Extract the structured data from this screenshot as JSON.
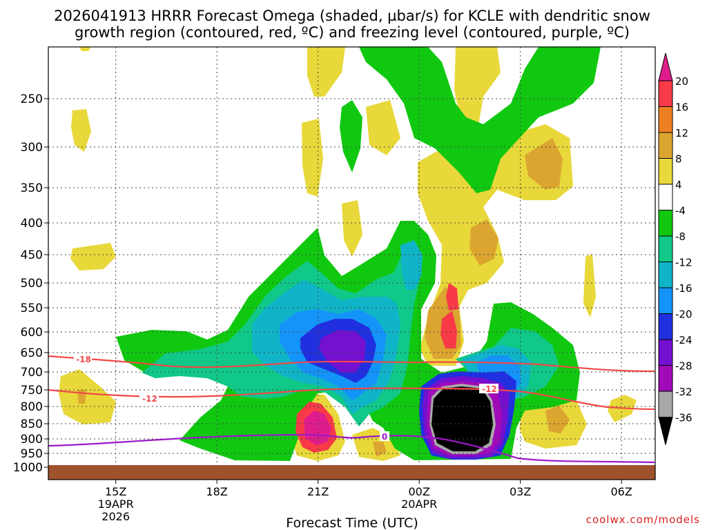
{
  "chart_data": {
    "type": "heatmap",
    "title_line1": "2026041913 HRRR Forecast Omega (shaded, µbar/s) for KCLE with dendritic snow",
    "title_line2": "growth region (contoured, red, ºC) and freezing level (contoured, purple, ºC)",
    "xlabel": "Forecast Time (UTC)",
    "credit": "coolwx.com/models",
    "x_range_hours": [
      13.0,
      31.0
    ],
    "y_levels": [
      "250",
      "300",
      "350",
      "400",
      "450",
      "500",
      "550",
      "600",
      "650",
      "700",
      "750",
      "800",
      "850",
      "900",
      "950",
      "1000"
    ],
    "y_range_hpa": [
      200,
      1010
    ],
    "x_ticks": [
      {
        "h": 15,
        "label": "15Z",
        "date": "19APR",
        "year": "2026"
      },
      {
        "h": 18,
        "label": "18Z",
        "date": "",
        "year": ""
      },
      {
        "h": 21,
        "label": "21Z",
        "date": "",
        "year": ""
      },
      {
        "h": 24,
        "label": "00Z",
        "date": "20APR",
        "year": ""
      },
      {
        "h": 27,
        "label": "03Z",
        "date": "",
        "year": ""
      },
      {
        "h": 30,
        "label": "06Z",
        "date": "",
        "year": ""
      }
    ],
    "colorbar": {
      "labels": [
        "20",
        "16",
        "12",
        "8",
        "4",
        "-4",
        "-8",
        "-12",
        "-16",
        "-20",
        "-24",
        "-28",
        "-32",
        "-36"
      ],
      "colors": [
        "#f83a48",
        "#ee8022",
        "#dca530",
        "#e8d83a",
        "#ffffff",
        "#10c810",
        "#10c888",
        "#10b4c8",
        "#1494f8",
        "#2030e0",
        "#7410d0",
        "#a00ab8",
        "#a8a8a8",
        "#000000"
      ],
      "top_arrow_color": "#e01c8c",
      "bottom_arrow_color": "#000000"
    },
    "contours": {
      "dgz_minus18_label": "-18",
      "dgz_minus12_label": "-12",
      "dgz_minus12_label_right": "-12",
      "freezing_label": "0",
      "dgz_color": "#f04848",
      "freezing_color": "#9a18c8",
      "ground_color": "#a0522d"
    },
    "omega_regions": [
      {
        "value": "4",
        "color": "#e8d83a"
      },
      {
        "value": "8",
        "color": "#dca530"
      },
      {
        "value": "16",
        "color": "#f83a48"
      },
      {
        "value": "-4",
        "color": "#10c810"
      },
      {
        "value": "-8",
        "color": "#10c888"
      },
      {
        "value": "-12",
        "color": "#10b4c8"
      },
      {
        "value": "-16",
        "color": "#1494f8"
      },
      {
        "value": "-20",
        "color": "#2030e0"
      },
      {
        "value": "-24",
        "color": "#7410d0"
      },
      {
        "value": "-28",
        "color": "#a00ab8"
      },
      {
        "value": "-36",
        "color": "#000000"
      }
    ]
  }
}
